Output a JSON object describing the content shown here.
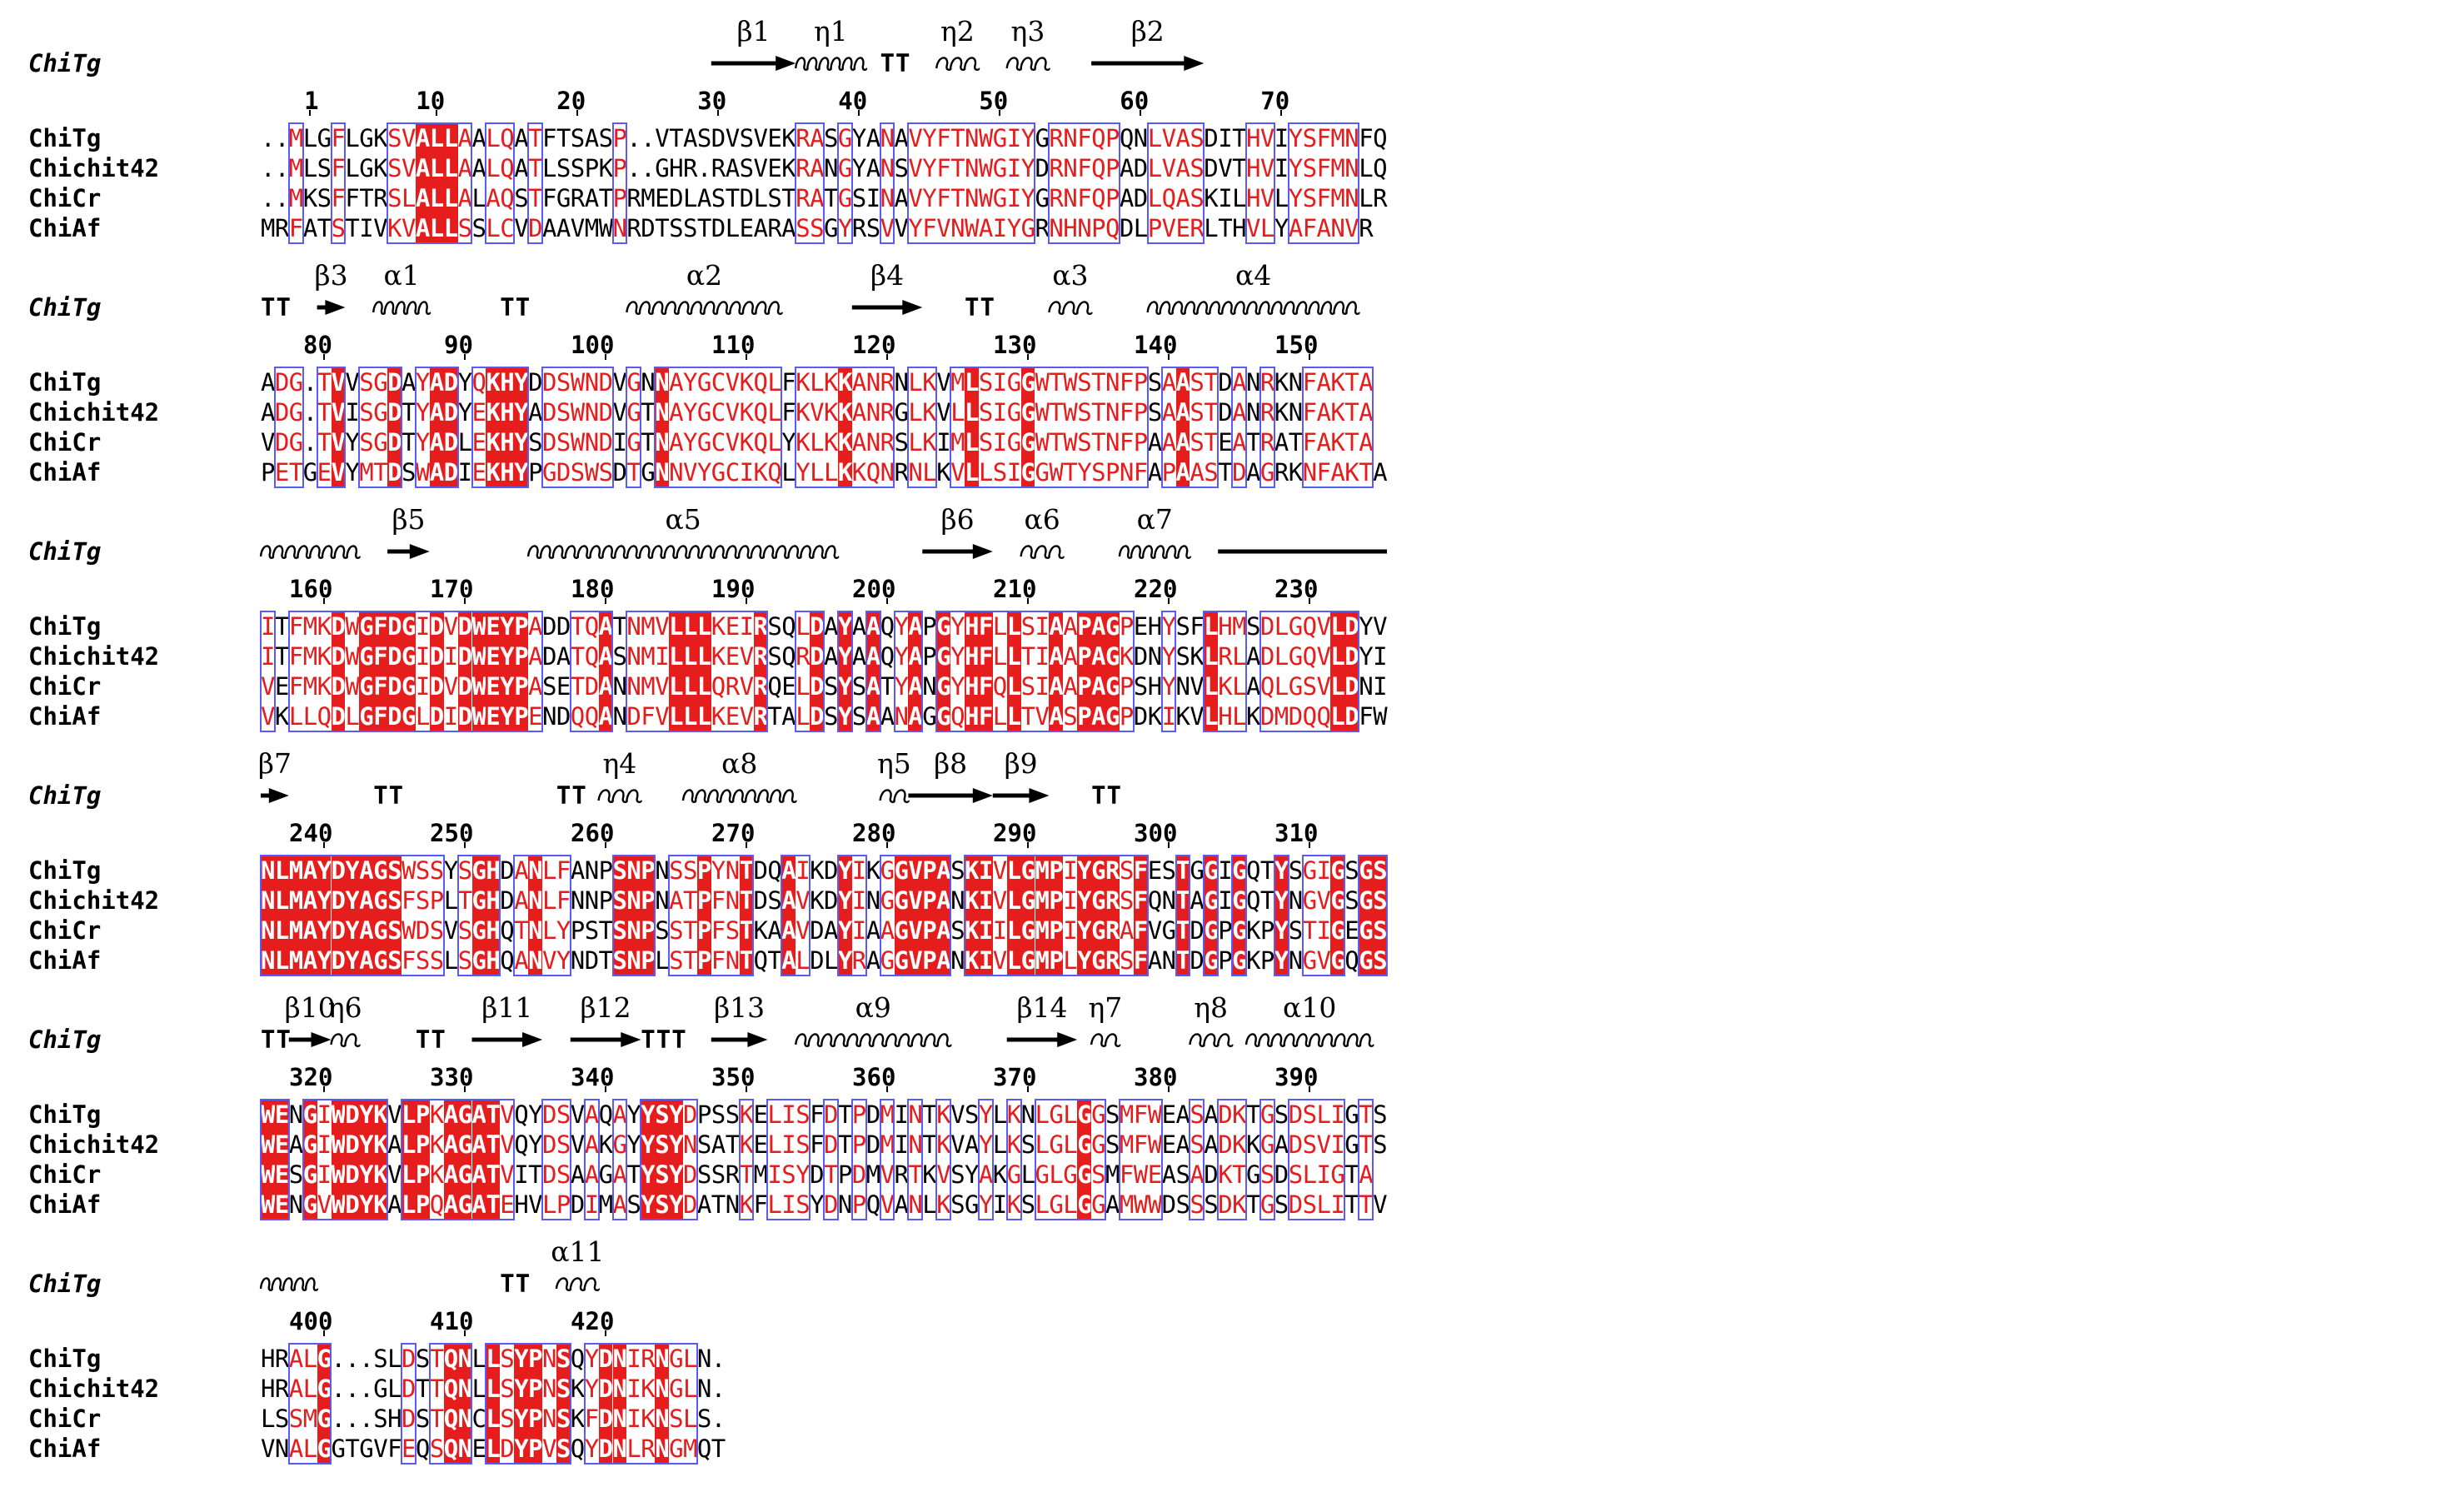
{
  "figure": {
    "reference_label": "ChiTg",
    "sequences": [
      {
        "name": "ChiTg"
      },
      {
        "name": "Chichit42"
      },
      {
        "name": "ChiCr"
      },
      {
        "name": "ChiAf"
      }
    ],
    "colors": {
      "identical_bg": "#e51d1d",
      "similar_text": "#e51d1d",
      "box_border": "#5a5af5"
    },
    "blocks": [
      {
        "start_number": 1,
        "rows": [
          "..MLGFLGKSVALLAALQATFTSASP..VTASDVSVEKRASGYANAVYFTNWGIYGRNFQPQNLVASDITHVIYSFMNFQ",
          "..MLSFLGKSVALLAALQATLSSPKP..GHR.RASVEKRANGYANSVYFTNWGIYDRNFQPADLVASDVTHVIYSFMNLQ",
          "..MKSFFTRSLALLALAQSTFGRATPRMEDLASTDLSTRATGSINAVYFTNWGIYGRNFQPADLQASKILHVLYSFMNLR",
          "MRFATSTIVKVALLSSLCVDAAVMWNRDTSSTDLEARASSGYRSVVYFVNWAIYGRNHNPQDLPVERLTHVLYAFANVR"
        ],
        "ruler": [
          "1",
          "10",
          "20",
          "30",
          "40",
          "50",
          "60",
          "70"
        ],
        "ss": [
          {
            "type": "arrow",
            "label": "β1"
          },
          {
            "type": "helix",
            "label": "η1"
          },
          {
            "type": "turn",
            "label": "TT"
          },
          {
            "type": "helix",
            "label": "η2"
          },
          {
            "type": "helix",
            "label": "η3"
          },
          {
            "type": "arrow",
            "label": "β2"
          }
        ]
      },
      {
        "start_number": 79,
        "rows": [
          "ADG.TVVSGDAYADYQKHYDDSWNDVGNNAYGCVKQLFKLKKANRNLKVMLSIGGWTWSTNFPSAASTDANRKNFAKTA",
          "ADG.TVISGDTYADYEKHYADSWNDVGTNAYGCVKQLFKVKKANRGLKVLLSIGGWTWSTNFPSAASTDANRKNFAKTA",
          "VDG.TVYSGDTYADLEKHYSDSWNDIGTNAYGCVKQLYKLKKANRSLKIMLSIGGWTWSTNFPAAASTEATRATFAKTA",
          "PETGEVYMTDSWADIEKHYPGDSWSDTGNNVYGCIKQLYLLKKQNRNLKVLLSIGGWTYSPNFAPAASTDAGRKNFAKTA"
        ],
        "ruler": [
          "80",
          "90",
          "100",
          "110",
          "120",
          "130",
          "140",
          "150"
        ],
        "ss": [
          {
            "type": "turn",
            "label": "TT"
          },
          {
            "type": "arrow",
            "label": "β3"
          },
          {
            "type": "helix",
            "label": "α1"
          },
          {
            "type": "turn",
            "label": "TT"
          },
          {
            "type": "helix",
            "label": "α2"
          },
          {
            "type": "arrow",
            "label": "β4"
          },
          {
            "type": "turn",
            "label": "TT"
          },
          {
            "type": "helix",
            "label": "α3"
          },
          {
            "type": "helix",
            "label": "α4"
          }
        ]
      },
      {
        "start_number": 156,
        "rows": [
          "ITFMKDWGFDGIDVDWEYPADDTQATNMVLLLKEIRSQLDAYAAQYAPGYHFLLSIAAPAGPEHYSFLHMSDLGQVLDYV",
          "ITFMKDWGFDGIDIDWEYPADATQASNMILLLKEVRSQRDAYAAQYAPGYHFLLTIAAPAGKDNYSKLRLADLGQVLDYI",
          "VEFMKDWGFDGIDVDWEYPASETDANNMVLLLQRVRQELDSYSATYANGYHFQLSIAAPAGPSHYNVLKLAQLGSVLDNI",
          "VKLLQDLGFDGLDIDWEYPENDQQANDFVLLLKEVRTALDSYSAANAGGQHFLLTVASPAGPDKIKVLHLKDMDQQLDFW"
        ],
        "ruler": [
          "160",
          "170",
          "180",
          "190",
          "200",
          "210",
          "220",
          "230"
        ],
        "ss": [
          {
            "type": "helix",
            "label": ""
          },
          {
            "type": "arrow",
            "label": "β5"
          },
          {
            "type": "helix",
            "label": "α5"
          },
          {
            "type": "arrow",
            "label": "β6"
          },
          {
            "type": "helix",
            "label": "α6"
          },
          {
            "type": "helix",
            "label": "α7"
          },
          {
            "type": "line",
            "label": ""
          }
        ]
      },
      {
        "start_number": 236,
        "rows": [
          "NLMAYDYAGSWSSYSGHDANLFANPSNPNSSPYNTDQAIKDYIKGGVPASKIVLGMPIYGRSFESTGGIGQTYSGIGSGS",
          "NLMAYDYAGSFSPLTGHDANLFNNPSNPNATPFNTDSAVKDYINGGVPANKIVLGMPIYGRSFQNTAGIGQTYNGVGSGS",
          "NLMAYDYAGSWDSVSGHQTNLYPSTSNPSSTPFSTKAAVDAYIAAGVPASKIILGMPIYGRAFVGTDGPGKPYSTIGEGS",
          "NLMAYDYAGSFSSLSGHQANVYNDTSNPLSTPFNTQTALDLYRAGGVPANKIVLGMPLYGRSFANTDGPGKPYNGVGQGS"
        ],
        "ruler": [
          "240",
          "250",
          "260",
          "270",
          "280",
          "290",
          "300",
          "310"
        ],
        "ss": [
          {
            "type": "arrow",
            "label": "β7"
          },
          {
            "type": "turn",
            "label": "TT"
          },
          {
            "type": "turn",
            "label": "TT"
          },
          {
            "type": "helix",
            "label": "η4"
          },
          {
            "type": "helix",
            "label": "α8"
          },
          {
            "type": "helix",
            "label": "η5"
          },
          {
            "type": "arrow",
            "label": "β8"
          },
          {
            "type": "arrow",
            "label": "β9"
          },
          {
            "type": "turn",
            "label": "TT"
          }
        ]
      },
      {
        "start_number": 316,
        "rows": [
          "WENGIWDYKVLPKAGATVQYDSVAQAYYSYDPSSKELISFDTPDMINTKVSYLKNLGLGGSMFWEASADKTGSDSLIGTS",
          "WEAGIWDYKALPKAGATVQYDSVAKGYYSYNSATKELISFDTPDMINTKVAYLKSLGLGGSMFWEASADKKGADSVIGTS",
          "WESGIWDYKVLPKAGATVITDSAAGATYSYDSSRTMISYDTPDMVRTKVSYAKGLGLGGSMFWEASADKTGSDSLIGTA",
          "WENGVWDYKALPQAGATEHVLPDIMASYSYDATNKFLISYDNPQVANLKSGYIKSLGLGGAMWWDSSSDKTGSDSLITTV"
        ],
        "ruler": [
          "320",
          "330",
          "340",
          "350",
          "360",
          "370",
          "380",
          "390"
        ],
        "ss": [
          {
            "type": "turn",
            "label": "TT"
          },
          {
            "type": "arrow",
            "label": "β10"
          },
          {
            "type": "helix",
            "label": "η6"
          },
          {
            "type": "turn",
            "label": "TT"
          },
          {
            "type": "arrow",
            "label": "β11"
          },
          {
            "type": "arrow",
            "label": "β12"
          },
          {
            "type": "turn",
            "label": "TTT"
          },
          {
            "type": "arrow",
            "label": "β13"
          },
          {
            "type": "helix",
            "label": "α9"
          },
          {
            "type": "arrow",
            "label": "β14"
          },
          {
            "type": "helix",
            "label": "η7"
          },
          {
            "type": "helix",
            "label": "η8"
          },
          {
            "type": "helix",
            "label": "α10"
          }
        ]
      },
      {
        "start_number": 396,
        "rows": [
          "HRALG...SLDSTQNLLSYPNSQYDNIRNGLN.",
          "HRALG...GLDTTQNLLSYPNSKYDNIKNGLN.",
          "LSSMG...SHDSTQNCLSYPNSKFDNIKNSLS.",
          "VNALGGTGVFEQSQNELDYPVSQYDNLRNGMQT"
        ],
        "ruler": [
          "400",
          "410",
          "420"
        ],
        "ss": [
          {
            "type": "helix",
            "label": ""
          },
          {
            "type": "turn",
            "label": "TT"
          },
          {
            "type": "helix",
            "label": "α11"
          }
        ]
      }
    ]
  }
}
